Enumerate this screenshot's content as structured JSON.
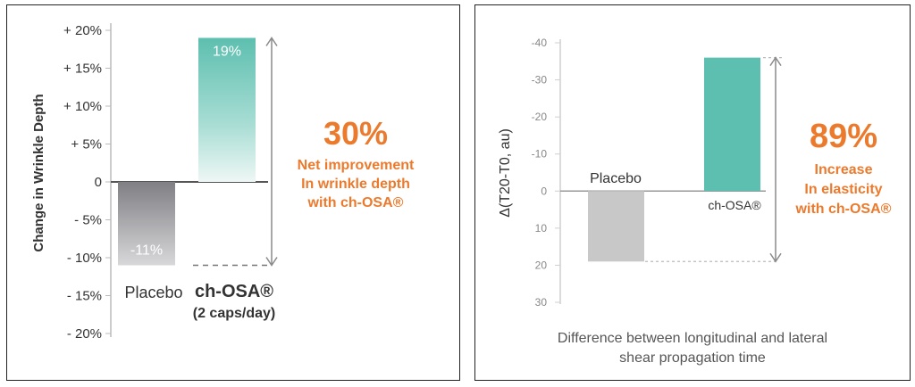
{
  "colors": {
    "accent": "#ec7a2d",
    "teal": "#5dbfaf",
    "placebo_dark": "#8a8a8e",
    "placebo_light": "#c8c8c8"
  },
  "chart_data": [
    {
      "type": "bar",
      "ylabel": "Change in Wrinkle Depth",
      "yticks": [
        "+ 20%",
        "+ 15%",
        "+ 10%",
        "+ 5%",
        "0",
        "- 5%",
        "- 10%",
        "- 15%",
        "- 20%"
      ],
      "ylim": [
        -20,
        20
      ],
      "categories": [
        "Placebo",
        "ch-OSA®"
      ],
      "category_sublabels": [
        "",
        "(2 caps/day)"
      ],
      "values": [
        -11,
        19
      ],
      "data_labels": [
        "-11%",
        "19%"
      ],
      "annotation": {
        "value": "30%",
        "lines": [
          "Net improvement",
          "In wrinkle depth",
          "with ch-OSA®"
        ]
      }
    },
    {
      "type": "bar",
      "ylabel": "Δ(T20-T0, au)",
      "xlabel_lines": [
        "Difference between longitudinal and lateral",
        "shear propagation time"
      ],
      "yticks": [
        "-40",
        "-30",
        "-20",
        "-10",
        "0",
        "10",
        "20",
        "30"
      ],
      "ylim": [
        30,
        -40
      ],
      "y_inverted": true,
      "categories": [
        "Placebo",
        "ch-OSA®"
      ],
      "values": [
        19,
        -36
      ],
      "annotation": {
        "value": "89%",
        "lines": [
          "Increase",
          "In elasticity",
          "with ch-OSA®"
        ]
      }
    }
  ]
}
